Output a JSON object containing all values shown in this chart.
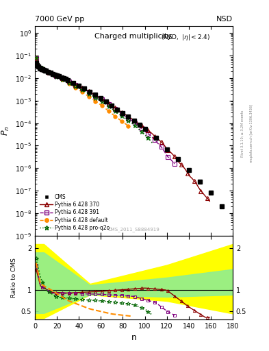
{
  "title_top": "7000 GeV pp",
  "title_right": "NSD",
  "plot_title": "Charged multiplicity",
  "plot_subtitle": "(NSD, |\\eta| < 2.4)",
  "ylabel_main": "$P_n$",
  "ylabel_ratio": "Ratio to CMS",
  "xlabel": "n",
  "watermark": "CMS_2011_S8884919",
  "right_label": "Rivet 3.1.10; ≥ 3.2M events",
  "right_label2": "mcplots.cern.ch [arXiv:1306.3436]",
  "ylim_main_lo": 1e-09,
  "ylim_main_hi": 2.0,
  "xlim": [
    0,
    180
  ],
  "ylim_ratio_lo": 0.3,
  "ylim_ratio_hi": 2.3,
  "colors": {
    "cms": "#000000",
    "p370": "#8b0000",
    "p391": "#800080",
    "pdefault": "#ff8c00",
    "pproq2o": "#006400"
  },
  "band_yellow": "#ffff00",
  "band_green": "#90ee90"
}
